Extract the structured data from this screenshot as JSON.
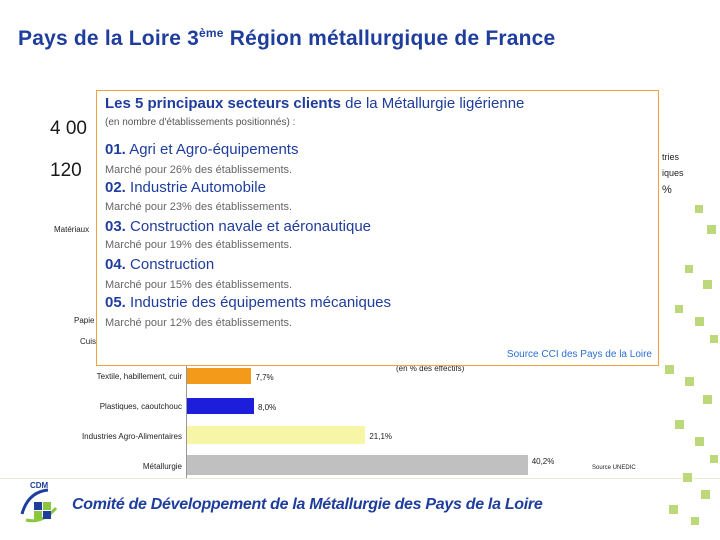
{
  "header": {
    "title_part1": "Pays de la Loire ",
    "title_rank": "3",
    "title_rank_sup": "ème",
    "title_part2": " Région métallurgique de France"
  },
  "background": {
    "left_num_1": "4 00",
    "left_num_2": "120",
    "right_frag_1": "tries",
    "right_frag_2": "iques",
    "right_frag_3": "%",
    "left_label_materiaux": "Matériaux",
    "left_label_papier": "Papie",
    "left_label_cuisine": "Cuisi",
    "effectifs_note": "(en % des effectifs)",
    "chart_source": "Source UNEDIC"
  },
  "chart_data": {
    "type": "bar",
    "orientation": "horizontal",
    "categories": [
      "Textile, habillement, cuir",
      "Plastiques, caoutchouc",
      "Industries Agro-Alimentaires",
      "Métallurgie"
    ],
    "values": [
      7.7,
      8.0,
      21.1,
      40.2
    ],
    "value_labels": [
      "7,7%",
      "8,0%",
      "21,1%",
      "40,2%"
    ],
    "colors": [
      "#f39a1b",
      "#1d1ddc",
      "#f6f6a6",
      "#c0c0c0"
    ],
    "unit": "%",
    "xlim": [
      0,
      45
    ]
  },
  "popup": {
    "title_bold": "Les 5 principaux secteurs clients",
    "title_rest": " de la Métallurgie ligérienne",
    "subtitle": "(en nombre d'établissements positionnés) :",
    "items": [
      {
        "num": "01.",
        "label": " Agri et Agro-équipements",
        "desc": "Marché pour 26% des établissements."
      },
      {
        "num": "02.",
        "label": " Industrie Automobile",
        "desc": "Marché pour 23% des établissements."
      },
      {
        "num": "03.",
        "label": " Construction navale et aéronautique",
        "desc": "Marché pour 19% des établissements."
      },
      {
        "num": "04.",
        "label": " Construction",
        "desc": "Marché pour 15% des établissements."
      },
      {
        "num": "05.",
        "label": " Industrie des équipements mécaniques",
        "desc": "Marché pour 12% des établissements."
      }
    ],
    "source": "Source CCI des Pays de la Loire"
  },
  "footer": {
    "logo_text": "CDM",
    "org_name": "Comité de Développement de la Métallurgie des Pays de la Loire"
  },
  "colors": {
    "title_blue": "#1f3d9c",
    "popup_border": "#f2a23a",
    "accent_green": "#bcd87a"
  }
}
